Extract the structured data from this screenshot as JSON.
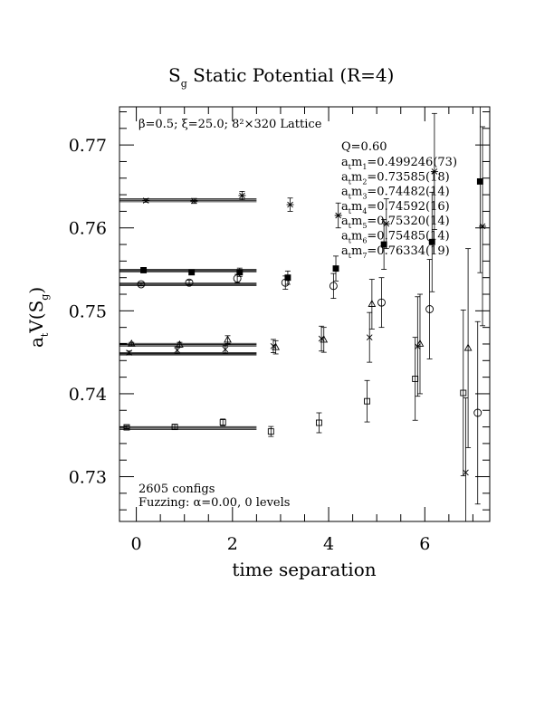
{
  "chart_data": {
    "type": "scatter",
    "title": {
      "main": "S",
      "sub": "g",
      "rest": " Static Potential (R=4)"
    },
    "xlabel": "time separation",
    "ylabel": {
      "main": "a",
      "sub1": "t",
      "mid": "V(S",
      "sub2": "g",
      "end": ")"
    },
    "xlim": [
      -0.35,
      7.35
    ],
    "ylim": [
      0.7246,
      0.7746
    ],
    "xticks": [
      0,
      2,
      4,
      6
    ],
    "xtick_labels": [
      "0",
      "2",
      "4",
      "6"
    ],
    "yticks": [
      0.73,
      0.74,
      0.75,
      0.76,
      0.77
    ],
    "ytick_labels": [
      "0.73",
      "0.74",
      "0.75",
      "0.76",
      "0.77"
    ],
    "lattice_text": "β=0.5; ξ=25.0; 8²×320 Lattice",
    "configs_text": "2605 configs",
    "fuzz_text": "Fuzzing: α=0.00, 0 levels",
    "q_text": "Q=0.60",
    "masses": [
      {
        "pre": "a",
        "sub1": "t",
        "mid": "m",
        "sub2": "1",
        "value": "=0.499246(73)"
      },
      {
        "pre": "a",
        "sub1": "t",
        "mid": "m",
        "sub2": "2",
        "value": "=0.73585(18)"
      },
      {
        "pre": "a",
        "sub1": "t",
        "mid": "m",
        "sub2": "3",
        "value": "=0.74482(14)"
      },
      {
        "pre": "a",
        "sub1": "t",
        "mid": "m",
        "sub2": "4",
        "value": "=0.74592(16)"
      },
      {
        "pre": "a",
        "sub1": "t",
        "mid": "m",
        "sub2": "5",
        "value": "=0.75320(14)"
      },
      {
        "pre": "a",
        "sub1": "t",
        "mid": "m",
        "sub2": "6",
        "value": "=0.75485(14)"
      },
      {
        "pre": "a",
        "sub1": "t",
        "mid": "m",
        "sub2": "7",
        "value": "=0.76334(19)"
      }
    ],
    "fit_lines": [
      {
        "y": 0.73585,
        "err": 0.00018,
        "x0": -0.35,
        "x1": 2.5
      },
      {
        "y": 0.74482,
        "err": 0.00014,
        "x0": -0.35,
        "x1": 2.5
      },
      {
        "y": 0.74592,
        "err": 0.00016,
        "x0": -0.35,
        "x1": 2.5
      },
      {
        "y": 0.7532,
        "err": 0.00014,
        "x0": -0.35,
        "x1": 2.5
      },
      {
        "y": 0.75485,
        "err": 0.00014,
        "x0": -0.35,
        "x1": 2.5
      },
      {
        "y": 0.76334,
        "err": 0.00019,
        "x0": -0.35,
        "x1": 2.5
      }
    ],
    "series": [
      {
        "marker": "square",
        "points": [
          {
            "x": -0.2,
            "y": 0.73595,
            "e": 0.0002
          },
          {
            "x": 0.8,
            "y": 0.736,
            "e": 0.0003
          },
          {
            "x": 1.8,
            "y": 0.73655,
            "e": 0.0004
          },
          {
            "x": 2.8,
            "y": 0.73545,
            "e": 0.0006
          },
          {
            "x": 3.8,
            "y": 0.7365,
            "e": 0.0012
          },
          {
            "x": 4.8,
            "y": 0.7391,
            "e": 0.0025
          },
          {
            "x": 5.8,
            "y": 0.7418,
            "e": 0.005
          },
          {
            "x": 6.8,
            "y": 0.7401,
            "e": 0.01
          }
        ]
      },
      {
        "marker": "x",
        "points": [
          {
            "x": -0.15,
            "y": 0.74495,
            "e": 0.0002
          },
          {
            "x": 0.85,
            "y": 0.74525,
            "e": 0.0004
          },
          {
            "x": 1.85,
            "y": 0.74535,
            "e": 0.0005
          },
          {
            "x": 2.85,
            "y": 0.74575,
            "e": 0.0008
          },
          {
            "x": 3.85,
            "y": 0.74665,
            "e": 0.0015
          },
          {
            "x": 4.85,
            "y": 0.7468,
            "e": 0.003
          },
          {
            "x": 5.85,
            "y": 0.7457,
            "e": 0.006
          },
          {
            "x": 6.85,
            "y": 0.7305,
            "e": 0.009
          }
        ]
      },
      {
        "marker": "triangle",
        "points": [
          {
            "x": -0.1,
            "y": 0.746,
            "e": 0.0002
          },
          {
            "x": 0.9,
            "y": 0.7459,
            "e": 0.0003
          },
          {
            "x": 1.9,
            "y": 0.7465,
            "e": 0.0005
          },
          {
            "x": 2.9,
            "y": 0.7456,
            "e": 0.0008
          },
          {
            "x": 3.9,
            "y": 0.7465,
            "e": 0.0015
          },
          {
            "x": 4.9,
            "y": 0.7508,
            "e": 0.003
          },
          {
            "x": 5.9,
            "y": 0.746,
            "e": 0.006
          },
          {
            "x": 6.9,
            "y": 0.7455,
            "e": 0.012
          }
        ]
      },
      {
        "marker": "circle",
        "points": [
          {
            "x": 0.1,
            "y": 0.7532,
            "e": 0.0002
          },
          {
            "x": 1.1,
            "y": 0.7534,
            "e": 0.0003
          },
          {
            "x": 2.1,
            "y": 0.7539,
            "e": 0.0005
          },
          {
            "x": 3.1,
            "y": 0.7534,
            "e": 0.0008
          },
          {
            "x": 4.1,
            "y": 0.753,
            "e": 0.0015
          },
          {
            "x": 5.1,
            "y": 0.751,
            "e": 0.003
          },
          {
            "x": 6.1,
            "y": 0.7502,
            "e": 0.006
          },
          {
            "x": 7.1,
            "y": 0.7377,
            "e": 0.011
          }
        ]
      },
      {
        "marker": "filled-square",
        "points": [
          {
            "x": 0.15,
            "y": 0.7549,
            "e": 0.0002
          },
          {
            "x": 1.15,
            "y": 0.75465,
            "e": 0.0003
          },
          {
            "x": 2.15,
            "y": 0.75465,
            "e": 0.0005
          },
          {
            "x": 3.15,
            "y": 0.754,
            "e": 0.0008
          },
          {
            "x": 4.15,
            "y": 0.7551,
            "e": 0.0015
          },
          {
            "x": 5.15,
            "y": 0.758,
            "e": 0.003
          },
          {
            "x": 6.15,
            "y": 0.7583,
            "e": 0.006
          },
          {
            "x": 7.15,
            "y": 0.7656,
            "e": 0.011
          }
        ]
      },
      {
        "marker": "asterisk",
        "points": [
          {
            "x": 0.2,
            "y": 0.7633,
            "e": 0.0002
          },
          {
            "x": 1.2,
            "y": 0.76325,
            "e": 0.0003
          },
          {
            "x": 2.2,
            "y": 0.7639,
            "e": 0.0005
          },
          {
            "x": 3.2,
            "y": 0.7628,
            "e": 0.0008
          },
          {
            "x": 4.2,
            "y": 0.7615,
            "e": 0.0015
          },
          {
            "x": 5.2,
            "y": 0.7605,
            "e": 0.003
          },
          {
            "x": 6.2,
            "y": 0.7668,
            "e": 0.007
          },
          {
            "x": 7.2,
            "y": 0.7602,
            "e": 0.012
          }
        ]
      }
    ]
  }
}
